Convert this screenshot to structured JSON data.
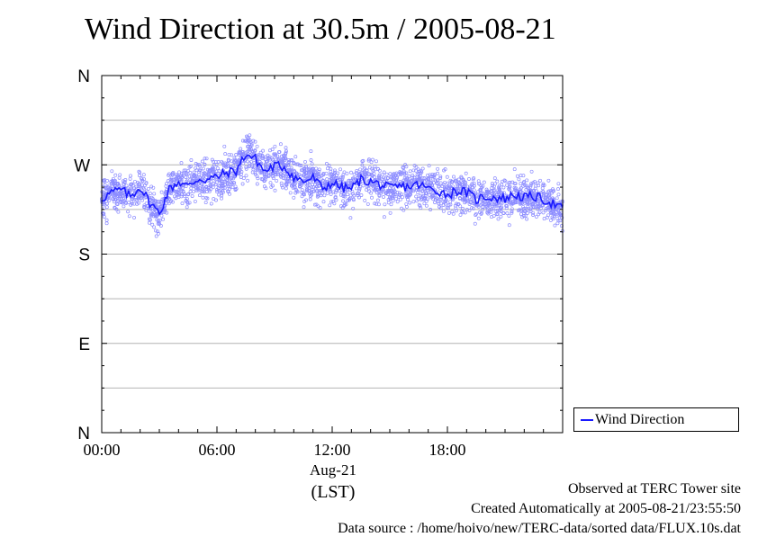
{
  "title": "Wind Direction at 30.5m / 2005-08-21",
  "chart_data": {
    "type": "scatter",
    "title": "Wind Direction at 30.5m / 2005-08-21",
    "xlabel": "(LST)",
    "date_label": "Aug-21",
    "ylabel": "",
    "x_ticks": [
      "00:00",
      "06:00",
      "12:00",
      "18:00"
    ],
    "x_tick_hours": [
      0,
      6,
      12,
      18
    ],
    "xlim_hours": [
      0,
      24
    ],
    "y_ticks": [
      "N",
      "W",
      "S",
      "E",
      "N"
    ],
    "y_tick_degrees": [
      360,
      270,
      180,
      90,
      0
    ],
    "ylim_degrees": [
      0,
      360
    ],
    "grid": true,
    "legend_position": "lower-right, outside plot",
    "series": [
      {
        "name": "Wind Direction",
        "color": "#1a1aff",
        "hours": [
          0.0,
          0.5,
          1.0,
          1.5,
          2.0,
          2.5,
          3.0,
          3.5,
          4.0,
          4.5,
          5.0,
          5.5,
          6.0,
          6.5,
          7.0,
          7.5,
          8.0,
          8.5,
          9.0,
          9.5,
          10.0,
          10.5,
          11.0,
          11.5,
          12.0,
          12.5,
          13.0,
          13.5,
          14.0,
          14.5,
          15.0,
          15.5,
          16.0,
          16.5,
          17.0,
          17.5,
          18.0,
          18.5,
          19.0,
          19.5,
          20.0,
          20.5,
          21.0,
          21.5,
          22.0,
          22.5,
          23.0,
          23.5,
          24.0
        ],
        "mean_degrees": [
          236,
          242,
          245,
          238,
          248,
          232,
          221,
          245,
          253,
          248,
          256,
          255,
          258,
          262,
          264,
          281,
          276,
          263,
          269,
          268,
          258,
          253,
          257,
          246,
          252,
          247,
          246,
          255,
          253,
          250,
          246,
          248,
          248,
          250,
          246,
          244,
          240,
          244,
          242,
          235,
          238,
          237,
          236,
          240,
          237,
          238,
          235,
          231,
          225
        ],
        "scatter_spread_degrees": 22
      }
    ]
  },
  "legend": {
    "label": "Wind Direction"
  },
  "footer": {
    "line1": "Observed at TERC Tower site",
    "line2": "Created Automatically at 2005-08-21/23:55:50",
    "line3": "Data source : /home/hoivo/new/TERC-data/sorted  data/FLUX.10s.dat"
  }
}
